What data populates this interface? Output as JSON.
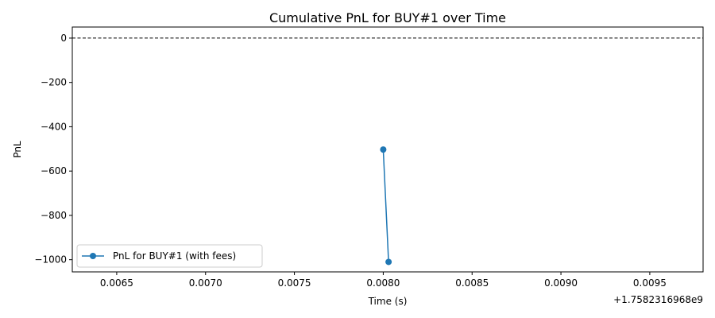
{
  "chart_data": {
    "type": "line",
    "title": "Cumulative PnL for BUY#1 over Time",
    "xlabel": "Time (s)",
    "ylabel": "PnL",
    "x_offset_label": "+1.7582316968e9",
    "xlim": [
      0.00625,
      0.0098
    ],
    "ylim": [
      -1055,
      50
    ],
    "x_ticks": [
      0.0065,
      0.007,
      0.0075,
      0.008,
      0.0085,
      0.009,
      0.0095
    ],
    "x_tick_labels": [
      "0.0065",
      "0.0070",
      "0.0075",
      "0.0080",
      "0.0085",
      "0.0090",
      "0.0095"
    ],
    "y_ticks": [
      0,
      -200,
      -400,
      -600,
      -800,
      -1000
    ],
    "y_tick_labels": [
      "0",
      "−200",
      "−400",
      "−600",
      "−800",
      "−1000"
    ],
    "reference_line": {
      "y": 0,
      "style": "dashed",
      "color": "#000000"
    },
    "series": [
      {
        "name": "PnL for BUY#1 (with fees)",
        "color": "#1f77b4",
        "marker": "circle",
        "x": [
          0.008,
          0.00803
        ],
        "y": [
          -503,
          -1010
        ]
      }
    ],
    "legend_position": "lower-left",
    "grid": false
  }
}
